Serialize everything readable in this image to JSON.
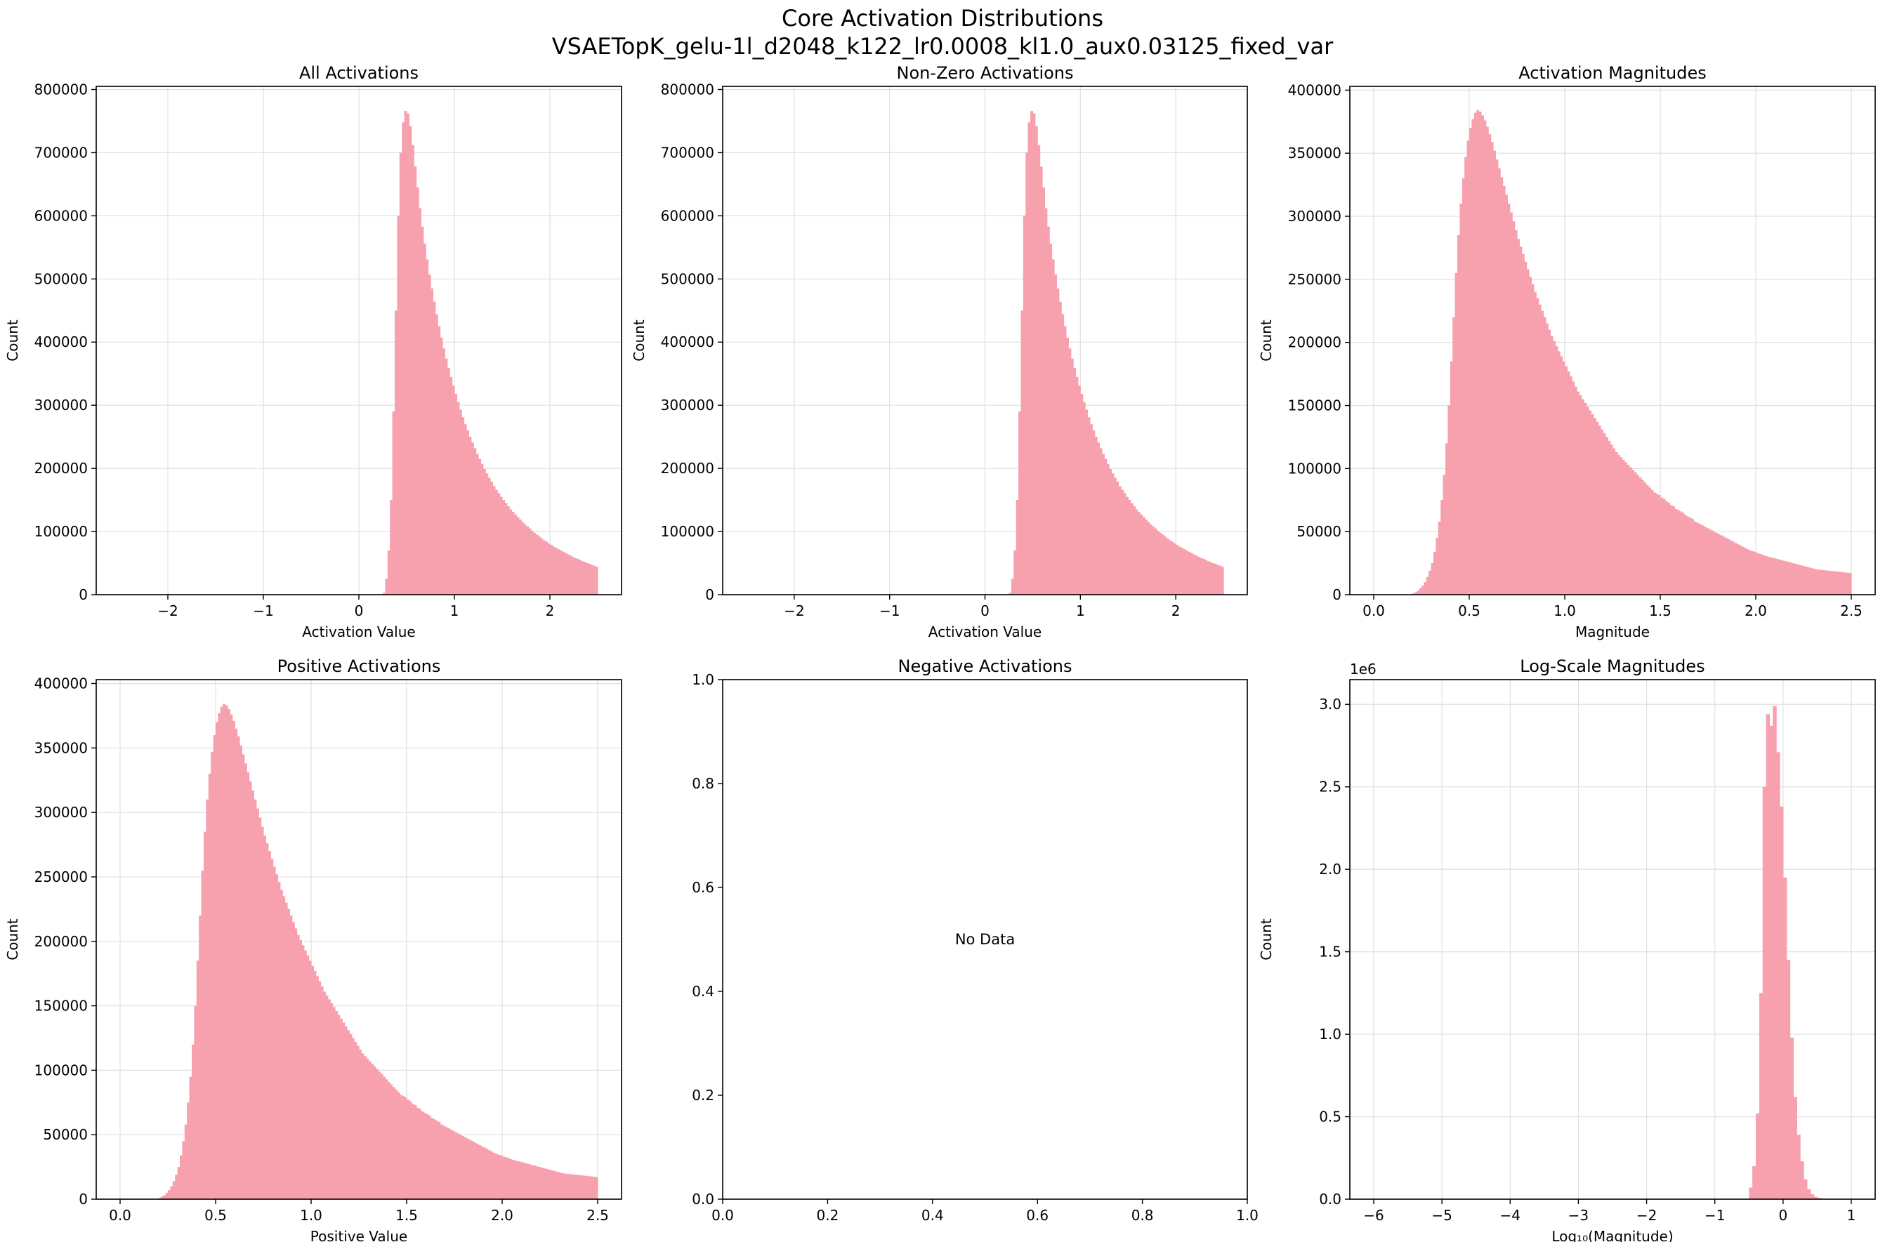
{
  "figure": {
    "title_line1": "Core Activation Distributions",
    "title_line2": "VSAETopK_gelu-1l_d2048_k122_lr0.0008_kl1.0_aux0.03125_fixed_var"
  },
  "colors": {
    "bar": "#f7a0ae",
    "grid": "#e0e0e0",
    "axis": "#000000"
  },
  "chart_data": [
    {
      "type": "histogram",
      "title": "All Activations",
      "xlabel": "Activation Value",
      "ylabel": "Count",
      "xlim": [
        -2.75,
        2.75
      ],
      "ylim": [
        0,
        805000
      ],
      "xticks": [
        -2,
        -1,
        0,
        1,
        2
      ],
      "xtick_labels": [
        "−2",
        "−1",
        "0",
        "1",
        "2"
      ],
      "yticks": [
        0,
        100000,
        200000,
        300000,
        400000,
        500000,
        600000,
        700000,
        800000
      ],
      "ytick_labels": [
        "0",
        "100000",
        "200000",
        "300000",
        "400000",
        "500000",
        "600000",
        "700000",
        "800000"
      ],
      "grid": true,
      "bin_range": [
        0.25,
        2.5
      ],
      "bin_width": 0.025,
      "series": [
        {
          "values": [
            3000,
            25000,
            70000,
            150000,
            290000,
            450000,
            600000,
            700000,
            748000,
            766000,
            762000,
            742000,
            712000,
            678000,
            645000,
            612000,
            583000,
            556000,
            531000,
            507000,
            485000,
            464000,
            444000,
            425000,
            407000,
            390000,
            374000,
            359000,
            345000,
            331000,
            318000,
            305000,
            293000,
            281000,
            270000,
            260000,
            250000,
            241000,
            232000,
            223000,
            215000,
            207000,
            199000,
            192000,
            185000,
            179000,
            172000,
            166000,
            161000,
            155000,
            150000,
            145000,
            140000,
            135000,
            131000,
            127000,
            123000,
            119000,
            115000,
            111000,
            108000,
            105000,
            101000,
            98000,
            95000,
            92000,
            89000,
            86000,
            84000,
            81000,
            79000,
            76000,
            74000,
            72000,
            70000,
            68000,
            66000,
            64000,
            62000,
            60000,
            58000,
            57000,
            55000,
            53000,
            52000,
            50000,
            49000,
            47000,
            46000,
            44000
          ]
        }
      ]
    },
    {
      "type": "histogram",
      "title": "Non-Zero Activations",
      "xlabel": "Activation Value",
      "ylabel": "Count",
      "xlim": [
        -2.75,
        2.75
      ],
      "ylim": [
        0,
        805000
      ],
      "xticks": [
        -2,
        -1,
        0,
        1,
        2
      ],
      "xtick_labels": [
        "−2",
        "−1",
        "0",
        "1",
        "2"
      ],
      "yticks": [
        0,
        100000,
        200000,
        300000,
        400000,
        500000,
        600000,
        700000,
        800000
      ],
      "ytick_labels": [
        "0",
        "100000",
        "200000",
        "300000",
        "400000",
        "500000",
        "600000",
        "700000",
        "800000"
      ],
      "grid": true,
      "bin_range": [
        0.25,
        2.5
      ],
      "bin_width": 0.025,
      "series": [
        {
          "values": [
            3000,
            25000,
            70000,
            150000,
            290000,
            450000,
            600000,
            700000,
            748000,
            766000,
            762000,
            742000,
            712000,
            678000,
            645000,
            612000,
            583000,
            556000,
            531000,
            507000,
            485000,
            464000,
            444000,
            425000,
            407000,
            390000,
            374000,
            359000,
            345000,
            331000,
            318000,
            305000,
            293000,
            281000,
            270000,
            260000,
            250000,
            241000,
            232000,
            223000,
            215000,
            207000,
            199000,
            192000,
            185000,
            179000,
            172000,
            166000,
            161000,
            155000,
            150000,
            145000,
            140000,
            135000,
            131000,
            127000,
            123000,
            119000,
            115000,
            111000,
            108000,
            105000,
            101000,
            98000,
            95000,
            92000,
            89000,
            86000,
            84000,
            81000,
            79000,
            76000,
            74000,
            72000,
            70000,
            68000,
            66000,
            64000,
            62000,
            60000,
            58000,
            57000,
            55000,
            53000,
            52000,
            50000,
            49000,
            47000,
            46000,
            44000
          ]
        }
      ]
    },
    {
      "type": "histogram",
      "title": "Activation Magnitudes",
      "xlabel": "Magnitude",
      "ylabel": "Count",
      "xlim": [
        -0.125,
        2.625
      ],
      "ylim": [
        0,
        403000
      ],
      "xticks": [
        0,
        0.5,
        1,
        1.5,
        2,
        2.5
      ],
      "xtick_labels": [
        "0.0",
        "0.5",
        "1.0",
        "1.5",
        "2.0",
        "2.5"
      ],
      "yticks": [
        0,
        50000,
        100000,
        150000,
        200000,
        250000,
        300000,
        350000,
        400000
      ],
      "ytick_labels": [
        "0",
        "50000",
        "100000",
        "150000",
        "200000",
        "250000",
        "300000",
        "350000",
        "400000"
      ],
      "grid": true,
      "bin_range": [
        0.2,
        2.5
      ],
      "bin_width": 0.0125,
      "series": [
        {
          "values": [
            1000,
            2000,
            3000,
            5000,
            7000,
            10000,
            14000,
            19000,
            25000,
            34000,
            45000,
            58000,
            75000,
            95000,
            120000,
            150000,
            185000,
            220000,
            255000,
            285000,
            310000,
            330000,
            347000,
            360000,
            370000,
            377000,
            382000,
            384000,
            383000,
            380000,
            376000,
            371000,
            365000,
            359000,
            352000,
            345000,
            338000,
            331000,
            324000,
            317000,
            310000,
            303000,
            296000,
            289000,
            282000,
            276000,
            270000,
            264000,
            258000,
            252000,
            246000,
            240000,
            235000,
            230000,
            225000,
            220000,
            215000,
            210000,
            205000,
            201000,
            197000,
            193000,
            189000,
            185000,
            181000,
            177000,
            173000,
            169000,
            165000,
            161000,
            158000,
            155000,
            152000,
            149000,
            146000,
            143000,
            140000,
            137000,
            134000,
            131000,
            128000,
            125000,
            122000,
            119000,
            116000,
            113000,
            111000,
            109000,
            107000,
            105000,
            103000,
            101000,
            99000,
            97000,
            95000,
            93000,
            91000,
            89000,
            87000,
            85000,
            83000,
            81000,
            80000,
            79000,
            77000,
            76000,
            74000,
            73000,
            71000,
            70000,
            68000,
            67000,
            66000,
            65000,
            63000,
            62000,
            61000,
            60000,
            58000,
            57000,
            56000,
            55000,
            54000,
            53000,
            52000,
            51000,
            50000,
            49000,
            48000,
            47000,
            46000,
            45000,
            44000,
            43000,
            42000,
            41000,
            40000,
            39000,
            38000,
            37000,
            36000,
            35000,
            34500,
            34000,
            33000,
            32500,
            32000,
            31000,
            30500,
            30000,
            29500,
            29000,
            28500,
            28000,
            27500,
            27000,
            26500,
            26000,
            25500,
            25000,
            24500,
            24000,
            23500,
            23000,
            22500,
            22000,
            21500,
            21000,
            20500,
            20000,
            19800,
            19600,
            19400,
            19200,
            19000,
            18800,
            18600,
            18400,
            18200,
            18000,
            17800,
            17600,
            17400,
            17200
          ]
        }
      ]
    },
    {
      "type": "histogram",
      "title": "Positive Activations",
      "xlabel": "Positive Value",
      "ylabel": "Count",
      "xlim": [
        -0.125,
        2.625
      ],
      "ylim": [
        0,
        403000
      ],
      "xticks": [
        0,
        0.5,
        1,
        1.5,
        2,
        2.5
      ],
      "xtick_labels": [
        "0.0",
        "0.5",
        "1.0",
        "1.5",
        "2.0",
        "2.5"
      ],
      "yticks": [
        0,
        50000,
        100000,
        150000,
        200000,
        250000,
        300000,
        350000,
        400000
      ],
      "ytick_labels": [
        "0",
        "50000",
        "100000",
        "150000",
        "200000",
        "250000",
        "300000",
        "350000",
        "400000"
      ],
      "grid": true,
      "bin_range": [
        0.2,
        2.5
      ],
      "bin_width": 0.0125,
      "series": [
        {
          "values": [
            1000,
            2000,
            3000,
            5000,
            7000,
            10000,
            14000,
            19000,
            25000,
            34000,
            45000,
            58000,
            75000,
            95000,
            120000,
            150000,
            185000,
            220000,
            255000,
            285000,
            310000,
            330000,
            347000,
            360000,
            370000,
            377000,
            382000,
            384000,
            383000,
            380000,
            376000,
            371000,
            365000,
            359000,
            352000,
            345000,
            338000,
            331000,
            324000,
            317000,
            310000,
            303000,
            296000,
            289000,
            282000,
            276000,
            270000,
            264000,
            258000,
            252000,
            246000,
            240000,
            235000,
            230000,
            225000,
            220000,
            215000,
            210000,
            205000,
            201000,
            197000,
            193000,
            189000,
            185000,
            181000,
            177000,
            173000,
            169000,
            165000,
            161000,
            158000,
            155000,
            152000,
            149000,
            146000,
            143000,
            140000,
            137000,
            134000,
            131000,
            128000,
            125000,
            122000,
            119000,
            116000,
            113000,
            111000,
            109000,
            107000,
            105000,
            103000,
            101000,
            99000,
            97000,
            95000,
            93000,
            91000,
            89000,
            87000,
            85000,
            83000,
            81000,
            80000,
            79000,
            77000,
            76000,
            74000,
            73000,
            71000,
            70000,
            68000,
            67000,
            66000,
            65000,
            63000,
            62000,
            61000,
            60000,
            58000,
            57000,
            56000,
            55000,
            54000,
            53000,
            52000,
            51000,
            50000,
            49000,
            48000,
            47000,
            46000,
            45000,
            44000,
            43000,
            42000,
            41000,
            40000,
            39000,
            38000,
            37000,
            36000,
            35000,
            34500,
            34000,
            33000,
            32500,
            32000,
            31000,
            30500,
            30000,
            29500,
            29000,
            28500,
            28000,
            27500,
            27000,
            26500,
            26000,
            25500,
            25000,
            24500,
            24000,
            23500,
            23000,
            22500,
            22000,
            21500,
            21000,
            20500,
            20000,
            19800,
            19600,
            19400,
            19200,
            19000,
            18800,
            18600,
            18400,
            18200,
            18000,
            17800,
            17600,
            17400,
            17200
          ]
        }
      ]
    },
    {
      "type": "histogram",
      "title": "Negative Activations",
      "xlabel": "",
      "ylabel": "",
      "xlim": [
        0,
        1
      ],
      "ylim": [
        0,
        1
      ],
      "xticks": [
        0,
        0.2,
        0.4,
        0.6,
        0.8,
        1.0
      ],
      "xtick_labels": [
        "0.0",
        "0.2",
        "0.4",
        "0.6",
        "0.8",
        "1.0"
      ],
      "yticks": [
        0,
        0.2,
        0.4,
        0.6,
        0.8,
        1.0
      ],
      "ytick_labels": [
        "0.0",
        "0.2",
        "0.4",
        "0.6",
        "0.8",
        "1.0"
      ],
      "grid": false,
      "annotation": {
        "text": "No Data",
        "x": 0.5,
        "y": 0.5
      },
      "series": []
    },
    {
      "type": "histogram",
      "title": "Log-Scale Magnitudes",
      "xlabel": "Log₁₀(Magnitude)",
      "ylabel": "Count",
      "offset_label": "1e6",
      "xlim": [
        -6.35,
        1.35
      ],
      "ylim": [
        0,
        3150000
      ],
      "xticks": [
        -6,
        -5,
        -4,
        -3,
        -2,
        -1,
        0,
        1
      ],
      "xtick_labels": [
        "−6",
        "−5",
        "−4",
        "−3",
        "−2",
        "−1",
        "0",
        "1"
      ],
      "yticks": [
        0,
        500000,
        1000000,
        1500000,
        2000000,
        2500000,
        3000000
      ],
      "ytick_labels": [
        "0.0",
        "0.5",
        "1.0",
        "1.5",
        "2.0",
        "2.5",
        "3.0"
      ],
      "grid": true,
      "bin_range": [
        -0.5,
        0.8
      ],
      "bin_width": 0.05,
      "series": [
        {
          "values": [
            70000,
            200000,
            520000,
            1250000,
            2500000,
            2940000,
            2870000,
            2990000,
            2710000,
            2380000,
            1950000,
            1450000,
            980000,
            620000,
            390000,
            230000,
            120000,
            60000,
            30000,
            15000,
            8000,
            4000,
            2000,
            1000,
            500,
            200
          ]
        }
      ]
    }
  ]
}
